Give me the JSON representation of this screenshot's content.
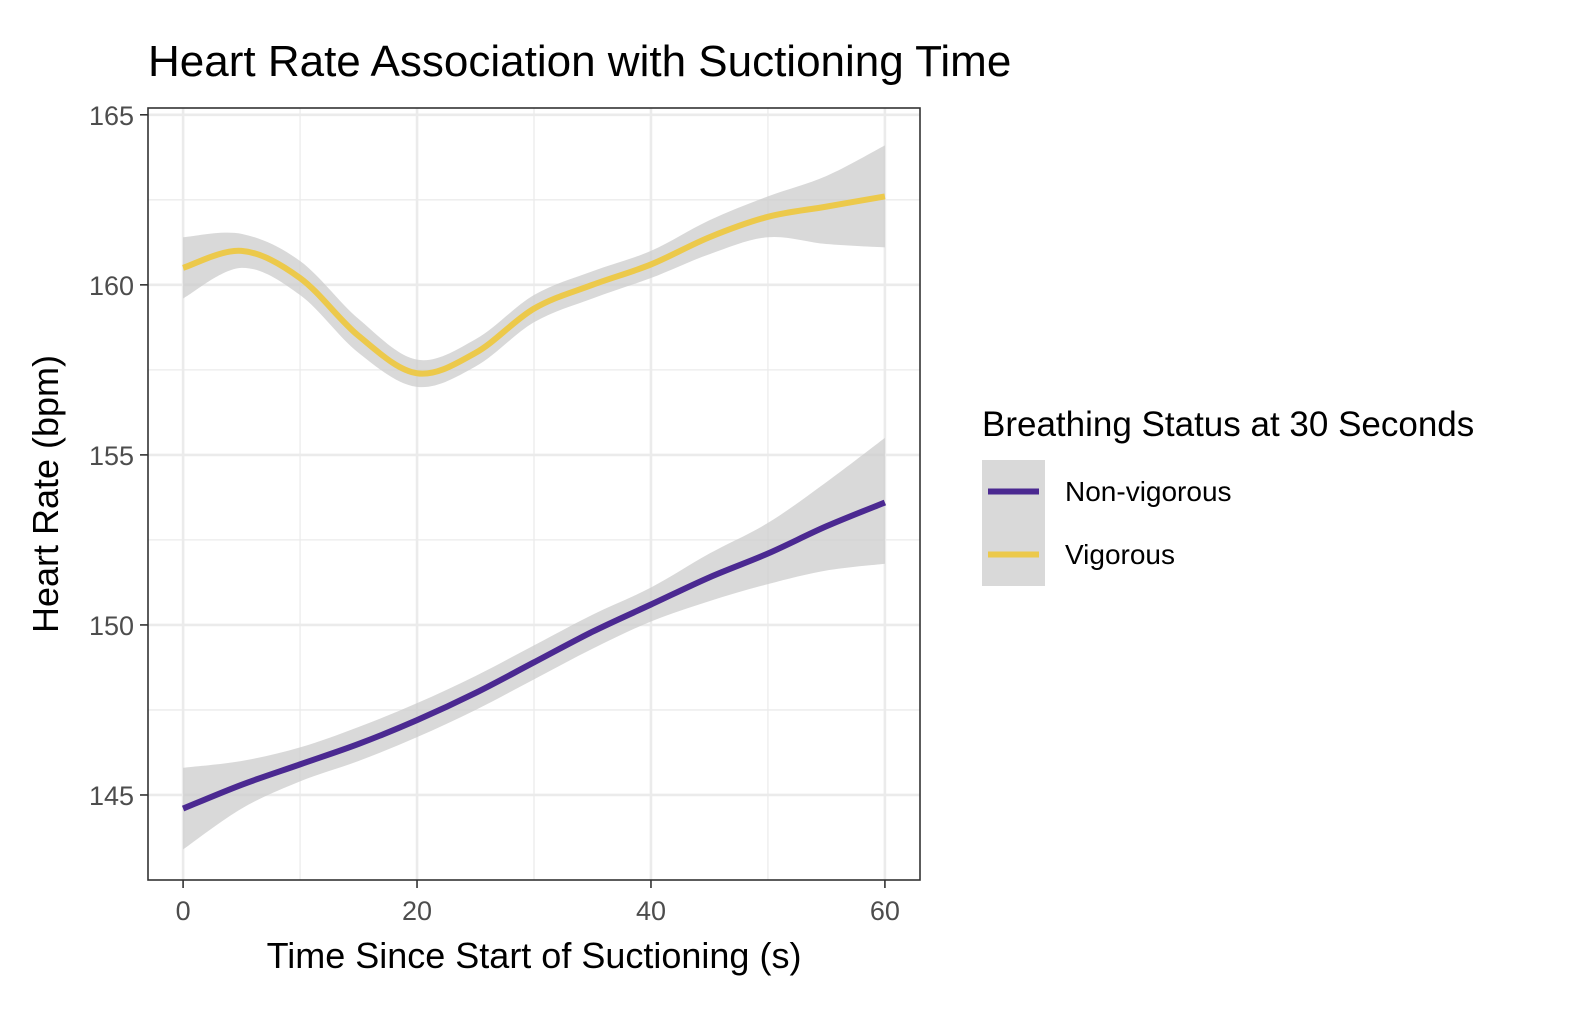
{
  "chart_data": {
    "type": "line",
    "title": "Heart Rate Association with Suctioning Time",
    "xlabel": "Time Since Start of Suctioning (s)",
    "ylabel": "Heart Rate (bpm)",
    "xlim": [
      -3,
      63
    ],
    "ylim": [
      142.5,
      165.2
    ],
    "x_ticks": [
      0,
      20,
      40,
      60
    ],
    "x_tick_labels": [
      "0",
      "20",
      "40",
      "60"
    ],
    "y_ticks": [
      145,
      150,
      155,
      160,
      165
    ],
    "y_tick_labels": [
      "145",
      "150",
      "155",
      "160",
      "165"
    ],
    "grid": true,
    "legend": {
      "title": "Breathing Status at 30 Seconds",
      "position": "right"
    },
    "series": [
      {
        "name": "Non-vigorous",
        "color": "#4b2991",
        "x": [
          0,
          5,
          10,
          15,
          20,
          25,
          30,
          35,
          40,
          45,
          50,
          55,
          60
        ],
        "y": [
          144.6,
          145.3,
          145.9,
          146.5,
          147.2,
          148.0,
          148.9,
          149.8,
          150.6,
          151.4,
          152.1,
          152.9,
          153.6
        ],
        "ci_lower": [
          143.4,
          144.6,
          145.4,
          146.0,
          146.7,
          147.5,
          148.4,
          149.3,
          150.1,
          150.7,
          151.2,
          151.6,
          151.8
        ],
        "ci_upper": [
          145.8,
          146.0,
          146.4,
          147.0,
          147.7,
          148.5,
          149.4,
          150.3,
          151.1,
          152.1,
          153.0,
          154.2,
          155.5
        ]
      },
      {
        "name": "Vigorous",
        "color": "#ecc94b",
        "x": [
          0,
          5,
          10,
          15,
          20,
          25,
          30,
          35,
          40,
          45,
          50,
          55,
          60
        ],
        "y": [
          160.5,
          161.0,
          160.2,
          158.5,
          157.4,
          158.0,
          159.3,
          160.0,
          160.6,
          161.4,
          162.0,
          162.3,
          162.6
        ],
        "ci_lower": [
          159.6,
          160.5,
          159.7,
          158.0,
          157.0,
          157.6,
          158.9,
          159.6,
          160.2,
          160.9,
          161.4,
          161.2,
          161.1
        ],
        "ci_upper": [
          161.4,
          161.5,
          160.7,
          159.0,
          157.8,
          158.4,
          159.7,
          160.4,
          161.0,
          161.9,
          162.6,
          163.2,
          164.1
        ]
      }
    ]
  },
  "colors": {
    "ribbon": "#cccccc",
    "grid": "#ebebeb",
    "panel_border": "#333333",
    "legend_key_bg": "#d9d9d9"
  }
}
